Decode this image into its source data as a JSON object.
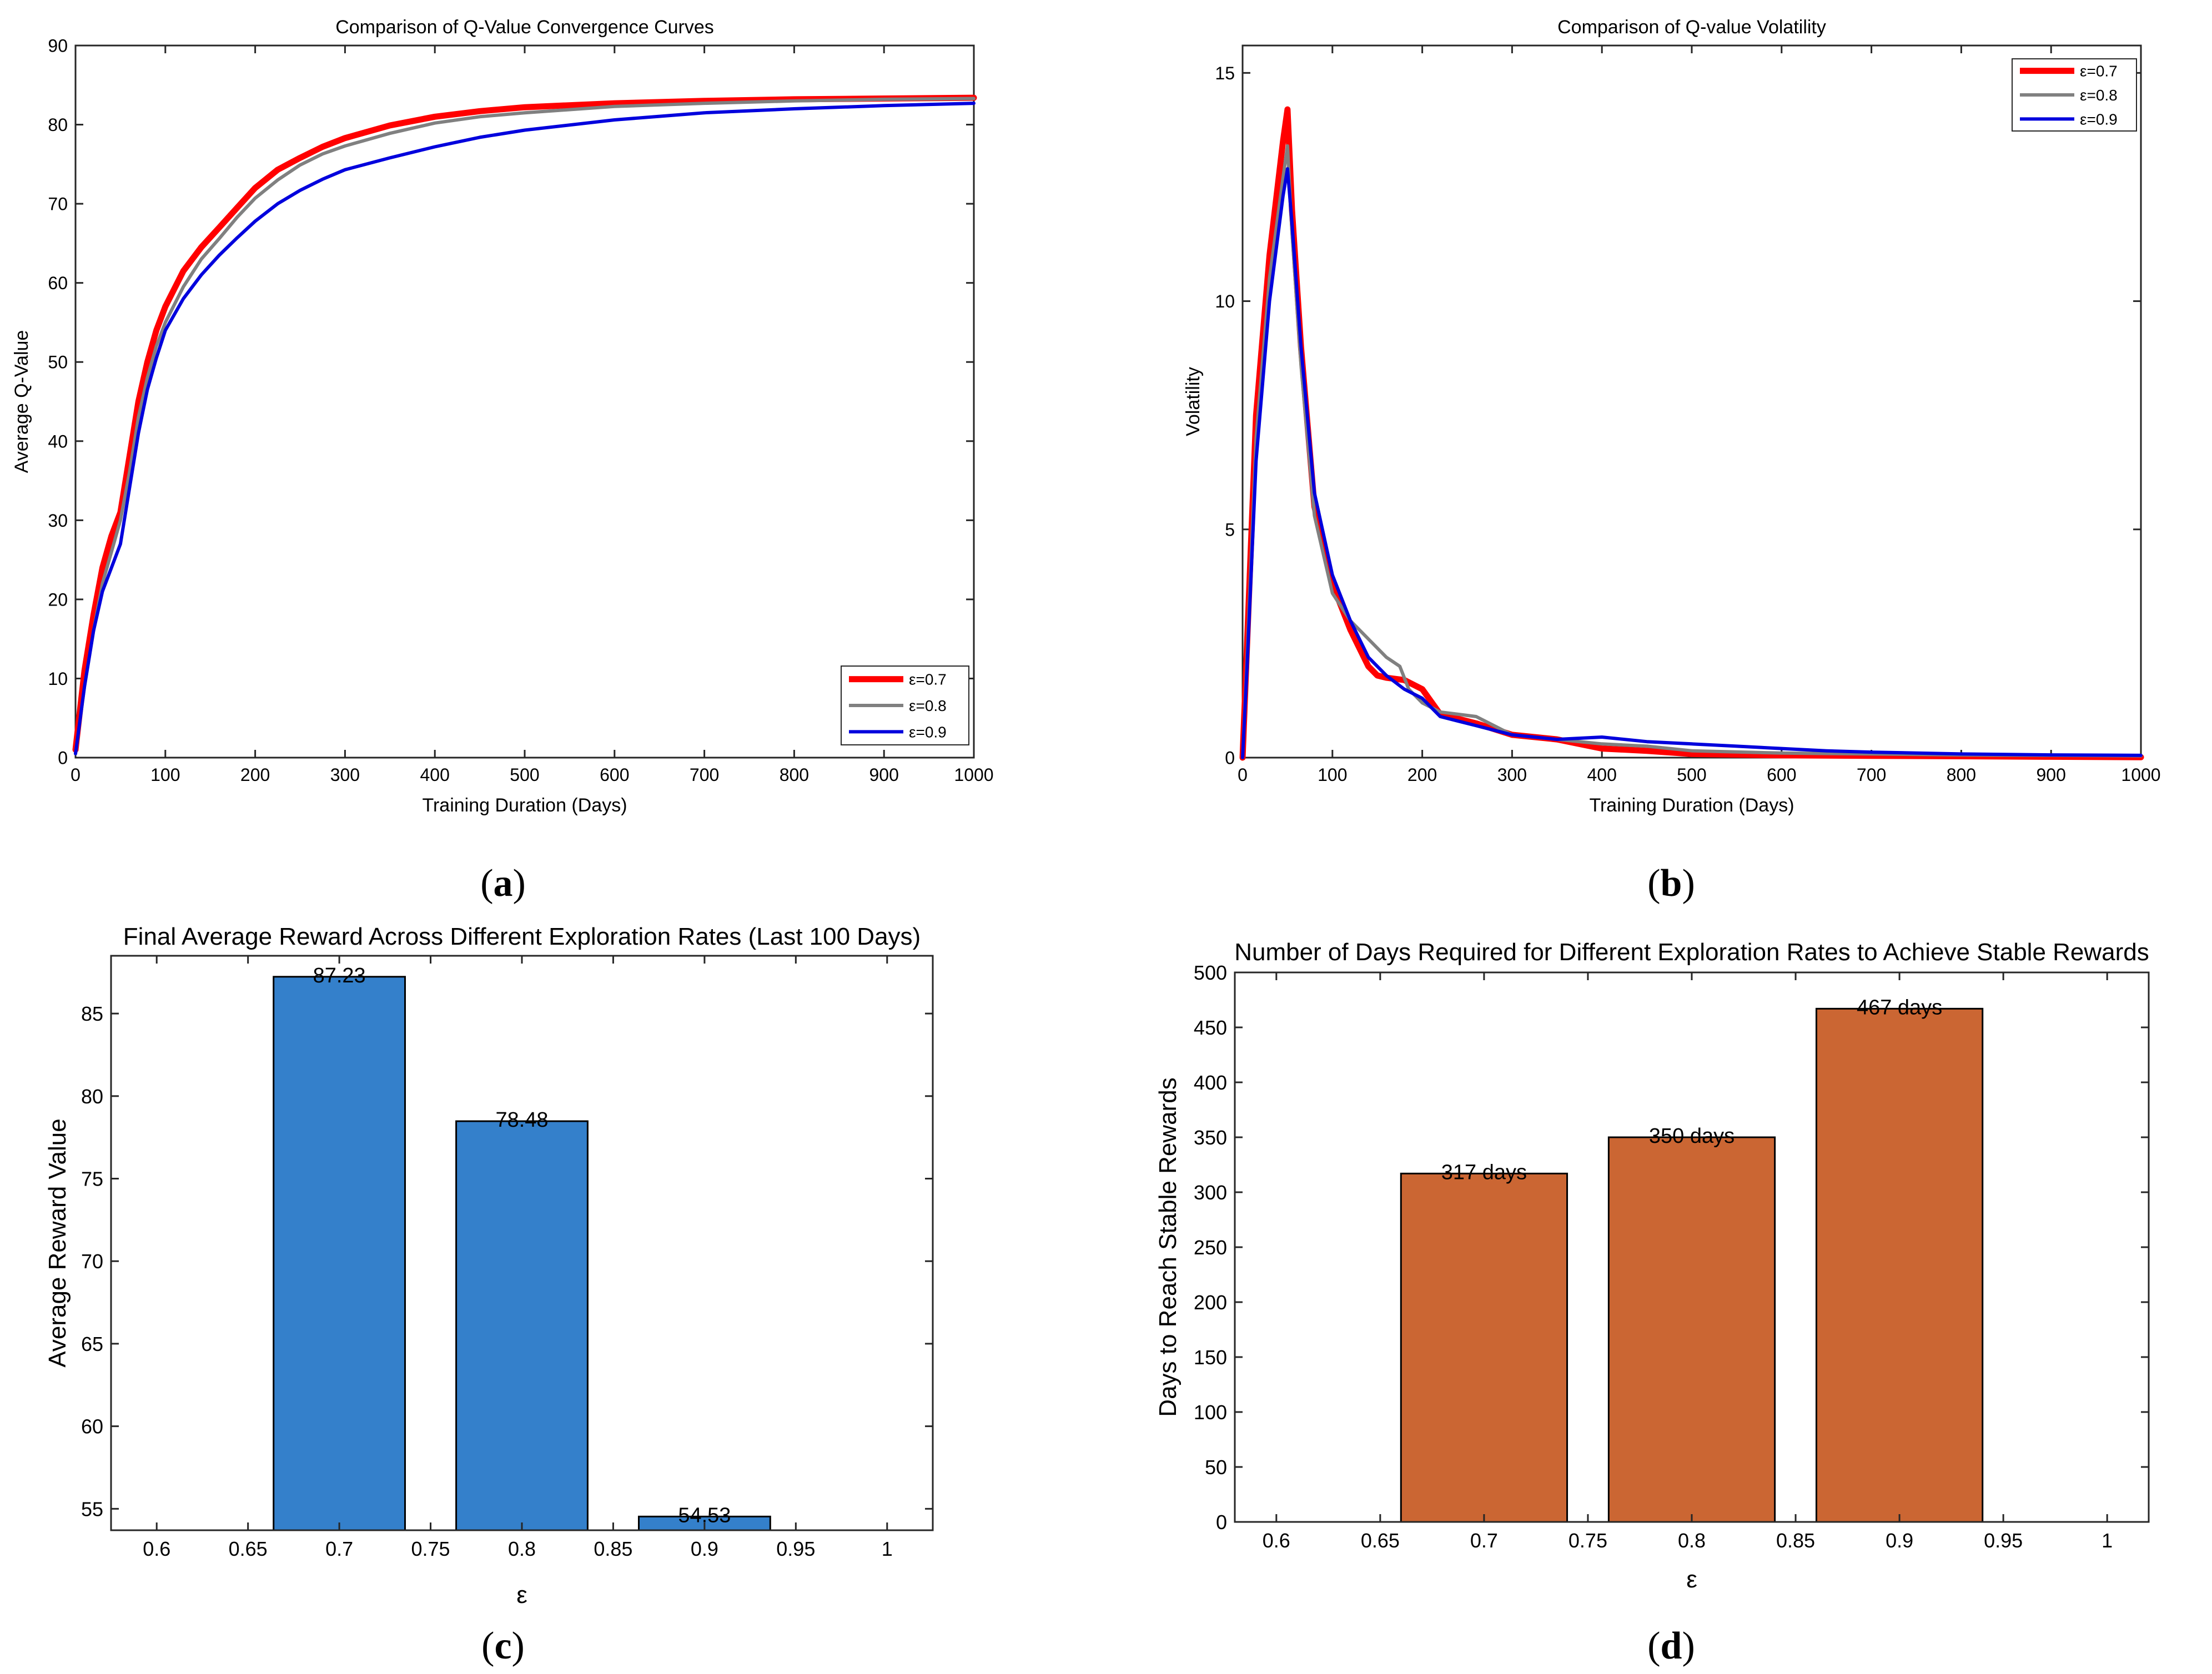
{
  "panel_labels": [
    "a",
    "b",
    "c",
    "d"
  ],
  "chart_data": [
    {
      "type": "line",
      "title": "Comparison of Q-Value Convergence Curves",
      "xlabel": "Training Duration (Days)",
      "ylabel": "Average Q-Value",
      "xlim": [
        0,
        1000
      ],
      "ylim": [
        0,
        90
      ],
      "xticks": [
        0,
        100,
        200,
        300,
        400,
        500,
        600,
        700,
        800,
        900,
        1000
      ],
      "yticks": [
        0,
        10,
        20,
        30,
        40,
        50,
        60,
        70,
        80,
        90
      ],
      "legend_position": "bottom-right",
      "series": [
        {
          "name": "ε=0.7",
          "color": "#ff0000",
          "width": "thick",
          "x": [
            0,
            10,
            20,
            30,
            40,
            50,
            60,
            70,
            80,
            90,
            100,
            120,
            140,
            160,
            180,
            200,
            225,
            250,
            275,
            300,
            350,
            400,
            450,
            500,
            600,
            700,
            800,
            900,
            1000
          ],
          "y": [
            1,
            11,
            18,
            24,
            28,
            31,
            38,
            45,
            50,
            54,
            57,
            61.5,
            64.5,
            67,
            69.5,
            72,
            74.3,
            75.8,
            77.2,
            78.3,
            79.9,
            81,
            81.7,
            82.2,
            82.7,
            83,
            83.2,
            83.3,
            83.4
          ]
        },
        {
          "name": "ε=0.8",
          "color": "#808080",
          "width": "normal",
          "x": [
            0,
            10,
            20,
            30,
            40,
            50,
            60,
            70,
            80,
            90,
            100,
            120,
            140,
            160,
            180,
            200,
            225,
            250,
            275,
            300,
            350,
            400,
            450,
            500,
            600,
            700,
            800,
            900,
            1000
          ],
          "y": [
            0.5,
            9,
            16,
            22,
            26,
            30,
            36,
            43,
            48,
            52,
            55,
            59.5,
            63,
            65.6,
            68.3,
            70.7,
            73,
            74.9,
            76.3,
            77.3,
            78.9,
            80.2,
            81,
            81.5,
            82.3,
            82.7,
            83,
            83.2,
            83.3
          ]
        },
        {
          "name": "ε=0.9",
          "color": "#0000dd",
          "width": "normal",
          "x": [
            0,
            10,
            20,
            30,
            40,
            50,
            60,
            70,
            80,
            90,
            100,
            120,
            140,
            160,
            180,
            200,
            225,
            250,
            275,
            300,
            350,
            400,
            450,
            500,
            600,
            700,
            800,
            900,
            1000
          ],
          "y": [
            0.5,
            9,
            16,
            21,
            24,
            27,
            34,
            41,
            46.5,
            50.5,
            54,
            58,
            61,
            63.5,
            65.7,
            67.8,
            70,
            71.7,
            73.1,
            74.3,
            75.8,
            77.2,
            78.4,
            79.3,
            80.6,
            81.5,
            82,
            82.4,
            82.7
          ]
        }
      ]
    },
    {
      "type": "line",
      "title": "Comparison of Q-value Volatility",
      "xlabel": "Training Duration (Days)",
      "ylabel": "Volatility",
      "xlim": [
        0,
        1000
      ],
      "ylim": [
        0,
        15.6
      ],
      "xticks": [
        0,
        100,
        200,
        300,
        400,
        500,
        600,
        700,
        800,
        900,
        1000
      ],
      "yticks": [
        0,
        5,
        10,
        15
      ],
      "legend_position": "top-right",
      "series": [
        {
          "name": "ε=0.7",
          "color": "#ff0000",
          "width": "thick",
          "x": [
            0,
            5,
            15,
            30,
            45,
            50,
            55,
            65,
            80,
            100,
            120,
            140,
            150,
            160,
            180,
            200,
            220,
            240,
            260,
            300,
            350,
            400,
            450,
            500,
            600,
            700,
            800,
            900,
            1000
          ],
          "y": [
            0,
            2.5,
            7.5,
            11,
            13.5,
            14.2,
            12,
            9,
            5.5,
            3.8,
            2.8,
            2.0,
            1.8,
            1.75,
            1.7,
            1.5,
            0.95,
            0.85,
            0.75,
            0.5,
            0.4,
            0.2,
            0.15,
            0.08,
            0.05,
            0.04,
            0.03,
            0.02,
            0.01
          ]
        },
        {
          "name": "ε=0.8",
          "color": "#808080",
          "width": "normal",
          "x": [
            0,
            5,
            15,
            30,
            45,
            50,
            55,
            65,
            80,
            100,
            120,
            140,
            160,
            175,
            185,
            200,
            220,
            240,
            260,
            300,
            350,
            400,
            450,
            500,
            600,
            700,
            800,
            900,
            1000
          ],
          "y": [
            0,
            2.2,
            7,
            10.5,
            12.7,
            13.4,
            11.5,
            8.6,
            5.3,
            3.6,
            3.0,
            2.6,
            2.2,
            2.0,
            1.5,
            1.2,
            1.0,
            0.95,
            0.9,
            0.5,
            0.4,
            0.3,
            0.25,
            0.15,
            0.1,
            0.08,
            0.06,
            0.05,
            0.04
          ]
        },
        {
          "name": "ε=0.9",
          "color": "#0000dd",
          "width": "normal",
          "x": [
            0,
            5,
            15,
            30,
            45,
            50,
            55,
            65,
            80,
            100,
            120,
            140,
            160,
            180,
            200,
            220,
            240,
            260,
            300,
            350,
            400,
            450,
            500,
            550,
            600,
            650,
            700,
            800,
            900,
            1000
          ],
          "y": [
            0,
            2,
            6.5,
            10,
            12.3,
            12.9,
            11.7,
            9,
            5.8,
            4.0,
            3.0,
            2.2,
            1.8,
            1.5,
            1.3,
            0.9,
            0.8,
            0.7,
            0.5,
            0.4,
            0.45,
            0.35,
            0.3,
            0.25,
            0.2,
            0.15,
            0.12,
            0.08,
            0.06,
            0.05
          ]
        }
      ]
    },
    {
      "type": "bar",
      "title": "Final Average Reward Across Different Exploration Rates (Last 100 Days)",
      "xlabel": "ε",
      "ylabel": "Average Reward Value",
      "xlim": [
        0.575,
        1.025
      ],
      "ylim": [
        53.7,
        88.5
      ],
      "xticks": [
        0.6,
        0.65,
        0.7,
        0.75,
        0.8,
        0.85,
        0.9,
        0.95,
        1
      ],
      "xtick_labels": [
        "0.6",
        "0.65",
        "0.7",
        "0.75",
        "0.8",
        "0.85",
        "0.9",
        "0.95",
        "1"
      ],
      "yticks": [
        55,
        60,
        65,
        70,
        75,
        80,
        85
      ],
      "bar_color": "#3480cb",
      "bar_width": 0.072,
      "categories": [
        0.7,
        0.8,
        0.9
      ],
      "values": [
        87.23,
        78.48,
        54.53
      ],
      "data_labels": [
        "87.23",
        "78.48",
        "54.53"
      ]
    },
    {
      "type": "bar",
      "title": "Number of Days Required for Different Exploration Rates to Achieve Stable Rewards",
      "xlabel": "ε",
      "ylabel": "Days to Reach Stable Rewards",
      "xlim": [
        0.58,
        1.02
      ],
      "ylim": [
        0,
        500
      ],
      "xticks": [
        0.6,
        0.65,
        0.7,
        0.75,
        0.8,
        0.85,
        0.9,
        0.95,
        1
      ],
      "xtick_labels": [
        "0.6",
        "0.65",
        "0.7",
        "0.75",
        "0.8",
        "0.85",
        "0.9",
        "0.95",
        "1"
      ],
      "yticks": [
        0,
        50,
        100,
        150,
        200,
        250,
        300,
        350,
        400,
        450,
        500
      ],
      "bar_color": "#cb6633",
      "bar_width": 0.08,
      "categories": [
        0.7,
        0.8,
        0.9
      ],
      "values": [
        317,
        350,
        467
      ],
      "data_labels": [
        "317 days",
        "350 days",
        "467 days"
      ]
    }
  ]
}
